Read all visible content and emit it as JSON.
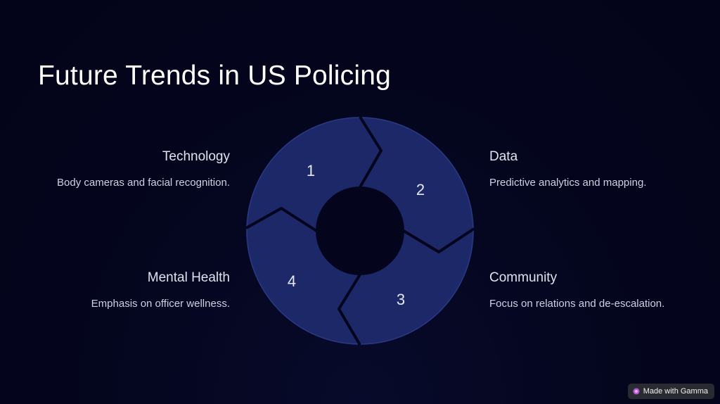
{
  "slide": {
    "title": "Future Trends in US Policing"
  },
  "items": {
    "technology": {
      "number": "1",
      "title": "Technology",
      "description": "Body cameras and facial recognition."
    },
    "data": {
      "number": "2",
      "title": "Data",
      "description": "Predictive analytics and mapping."
    },
    "community": {
      "number": "3",
      "title": "Community",
      "description": "Focus on relations and de-escalation."
    },
    "mental_health": {
      "number": "4",
      "title": "Mental Health",
      "description": "Emphasis on officer wellness."
    }
  },
  "colors": {
    "background": "#04051c",
    "segment_fill": "#1c2868",
    "segment_border": "#2a3a88",
    "separator": "#04051c"
  },
  "badge": {
    "label": "Made with Gamma",
    "icon": "gamma-logo-icon"
  }
}
